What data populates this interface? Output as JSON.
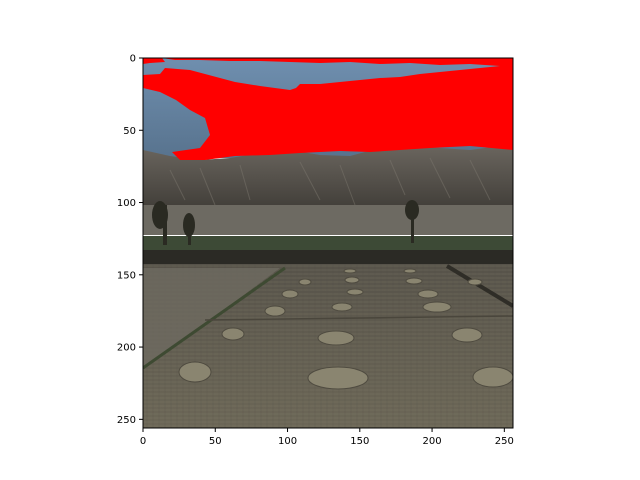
{
  "chart_data": {
    "type": "image",
    "title": "",
    "xlabel": "",
    "ylabel": "",
    "xlim": [
      0,
      256
    ],
    "ylim": [
      256,
      0
    ],
    "grid": false,
    "legend": "none",
    "x_ticks": [
      0,
      50,
      100,
      150,
      200,
      250
    ],
    "y_ticks": [
      0,
      50,
      100,
      150,
      200,
      250
    ],
    "x_tick_labels": [
      "0",
      "50",
      "100",
      "150",
      "200",
      "250"
    ],
    "y_tick_labels": [
      "0",
      "50",
      "100",
      "150",
      "200",
      "250"
    ],
    "image_description": "Photograph of terraced farmland with harvested hay piles, a river valley and barren hills, overlaid with a red segmentation mask covering most of the sky.",
    "colors": {
      "mask": "#ff0000",
      "sky": "#5f7f9f",
      "hills": "#5a5650",
      "field": "#6d6859"
    }
  }
}
